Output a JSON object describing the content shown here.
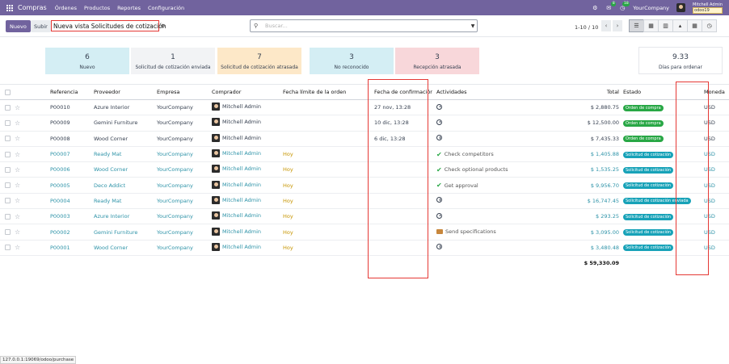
{
  "navbar": {
    "app_name": "Compras",
    "menu": [
      "Órdenes",
      "Productos",
      "Reportes",
      "Configuración"
    ],
    "notification_badge": "8",
    "clock_badge": "18",
    "company": "YourCompany",
    "user_name": "Mitchell Admin",
    "db_name": "odoo19"
  },
  "control_panel": {
    "new_label": "Nuevo",
    "upload_label": "Subir",
    "view_title": "Nueva vista Solicitudes de cotización",
    "search_placeholder": "Buscar...",
    "pager": "1-10 / 10"
  },
  "cards": [
    {
      "value": "6",
      "label": "Nuevo"
    },
    {
      "value": "1",
      "label": "Solicitud de cotización enviada"
    },
    {
      "value": "7",
      "label": "Solicitud de cotización atrasada"
    },
    {
      "value": "3",
      "label": "No reconocido"
    },
    {
      "value": "3",
      "label": "Recepción atrasada"
    },
    {
      "value": "9.33",
      "label": "Días para ordenar"
    }
  ],
  "colors": {
    "brand": "#71639e",
    "card_new": "#d4eef4",
    "card_sent": "#f2f3f5",
    "card_late": "#fde8c8",
    "card_unack": "#d4eef4",
    "card_rec_late": "#f8d7da",
    "link": "#2e93a8",
    "badge_green": "#28a745",
    "badge_teal": "#17a2b8",
    "highlight": "#e53935"
  },
  "table": {
    "headers": {
      "reference": "Referencia",
      "vendor": "Proveedor",
      "company": "Empresa",
      "buyer": "Comprador",
      "deadline": "Fecha límite de la orden",
      "confirm_date": "Fecha de confirmación",
      "activities": "Actividades",
      "total": "Total",
      "state": "Estado",
      "currency": "Moneda"
    },
    "rows": [
      {
        "ref": "P00010",
        "vendor": "Azure Interior",
        "company": "YourCompany",
        "buyer": "Mitchell Admin",
        "deadline": "",
        "confirm": "27 nov, 13:28",
        "activity": "",
        "activity_icon": "clock-icon",
        "total": "$ 2,880.75",
        "state": "Orden de compra",
        "state_color": "green",
        "currency": "USD",
        "draft": false
      },
      {
        "ref": "P00009",
        "vendor": "Gemini Furniture",
        "company": "YourCompany",
        "buyer": "Mitchell Admin",
        "deadline": "",
        "confirm": "10 dic, 13:28",
        "activity": "",
        "activity_icon": "clock-icon",
        "total": "$ 12,500.00",
        "state": "Orden de compra",
        "state_color": "green",
        "currency": "USD",
        "draft": false
      },
      {
        "ref": "P00008",
        "vendor": "Wood Corner",
        "company": "YourCompany",
        "buyer": "Mitchell Admin",
        "deadline": "",
        "confirm": "6 dic, 13:28",
        "activity": "",
        "activity_icon": "clock-icon",
        "total": "$ 7,435.33",
        "state": "Orden de compra",
        "state_color": "green",
        "currency": "USD",
        "draft": false
      },
      {
        "ref": "P00007",
        "vendor": "Ready Mat",
        "company": "YourCompany",
        "buyer": "Mitchell Admin",
        "deadline": "Hoy",
        "confirm": "",
        "activity": "Check competitors",
        "activity_icon": "check-icon",
        "total": "$ 1,405.88",
        "state": "Solicitud de cotización",
        "state_color": "teal",
        "currency": "USD",
        "draft": true
      },
      {
        "ref": "P00006",
        "vendor": "Wood Corner",
        "company": "YourCompany",
        "buyer": "Mitchell Admin",
        "deadline": "Hoy",
        "confirm": "",
        "activity": "Check optional products",
        "activity_icon": "check-icon",
        "total": "$ 1,535.25",
        "state": "Solicitud de cotización",
        "state_color": "teal",
        "currency": "USD",
        "draft": true
      },
      {
        "ref": "P00005",
        "vendor": "Deco Addict",
        "company": "YourCompany",
        "buyer": "Mitchell Admin",
        "deadline": "Hoy",
        "confirm": "",
        "activity": "Get approval",
        "activity_icon": "check-icon",
        "total": "$ 9,956.70",
        "state": "Solicitud de cotización",
        "state_color": "teal",
        "currency": "USD",
        "draft": true
      },
      {
        "ref": "P00004",
        "vendor": "Ready Mat",
        "company": "YourCompany",
        "buyer": "Mitchell Admin",
        "deadline": "Hoy",
        "confirm": "",
        "activity": "",
        "activity_icon": "clock-icon",
        "total": "$ 16,747.45",
        "state": "Solicitud de cotización enviada",
        "state_color": "teal",
        "currency": "USD",
        "draft": true
      },
      {
        "ref": "P00003",
        "vendor": "Azure Interior",
        "company": "YourCompany",
        "buyer": "Mitchell Admin",
        "deadline": "Hoy",
        "confirm": "",
        "activity": "",
        "activity_icon": "clock-icon",
        "total": "$ 293.25",
        "state": "Solicitud de cotización",
        "state_color": "teal",
        "currency": "USD",
        "draft": true
      },
      {
        "ref": "P00002",
        "vendor": "Gemini Furniture",
        "company": "YourCompany",
        "buyer": "Mitchell Admin",
        "deadline": "Hoy",
        "confirm": "",
        "activity": "Send specifications",
        "activity_icon": "mail-icon",
        "total": "$ 3,095.00",
        "state": "Solicitud de cotización",
        "state_color": "teal",
        "currency": "USD",
        "draft": true
      },
      {
        "ref": "P00001",
        "vendor": "Wood Corner",
        "company": "YourCompany",
        "buyer": "Mitchell Admin",
        "deadline": "Hoy",
        "confirm": "",
        "activity": "",
        "activity_icon": "clock-icon",
        "total": "$ 3,480.48",
        "state": "Solicitud de cotización",
        "state_color": "teal",
        "currency": "USD",
        "draft": true
      }
    ],
    "grand_total": "$ 59,330.09"
  },
  "status_url": "127.0.0.1:19069/odoo/purchase"
}
